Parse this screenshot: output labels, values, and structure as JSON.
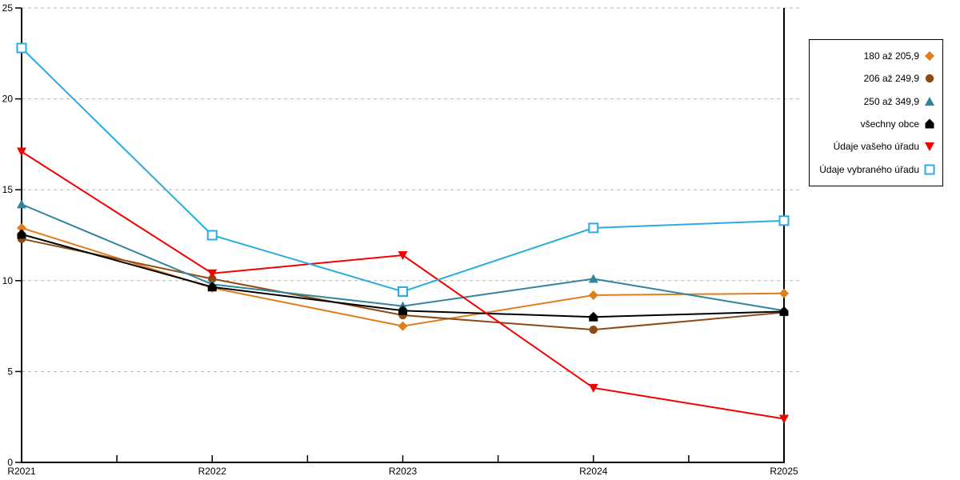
{
  "chart_data": {
    "type": "line",
    "title": "",
    "xlabel": "",
    "ylabel": "",
    "categories": [
      "R2021",
      "R2022",
      "R2023",
      "R2024",
      "R2025"
    ],
    "ylim": [
      0,
      25
    ],
    "yticks": [
      0,
      5,
      10,
      15,
      20,
      25
    ],
    "y_tick_labels": [
      "0",
      "5",
      "10",
      "15",
      "20",
      "25"
    ],
    "grid": "horizontal-dashed",
    "legend_position": "right",
    "series": [
      {
        "name": "180 až 205,9",
        "marker": "diamond",
        "color": "#e07d1e",
        "values": [
          12.9,
          9.6,
          7.5,
          9.2,
          9.3
        ]
      },
      {
        "name": "206 až 249,9",
        "marker": "circle",
        "color": "#8f4a14",
        "values": [
          12.3,
          10.1,
          8.1,
          7.3,
          8.25
        ]
      },
      {
        "name": "250 až 349,9",
        "marker": "triangle-up",
        "color": "#31849b",
        "values": [
          14.2,
          9.8,
          8.6,
          10.1,
          8.35
        ]
      },
      {
        "name": "všechny obce",
        "marker": "pentagon",
        "color": "#000000",
        "values": [
          12.55,
          9.65,
          8.35,
          8.0,
          8.3
        ]
      },
      {
        "name": "Údaje vašeho úřadu",
        "marker": "triangle-down",
        "color": "#f40000",
        "values": [
          17.1,
          10.4,
          11.4,
          4.1,
          2.4
        ]
      },
      {
        "name": "Údaje vybraného úřadu",
        "marker": "open-square",
        "color": "#2aace3",
        "values": [
          22.8,
          12.5,
          9.4,
          12.9,
          13.3
        ]
      }
    ]
  },
  "colors": {
    "axis": "#000000",
    "grid": "#b3b3b3",
    "background": "#ffffff",
    "text": "#000000"
  }
}
